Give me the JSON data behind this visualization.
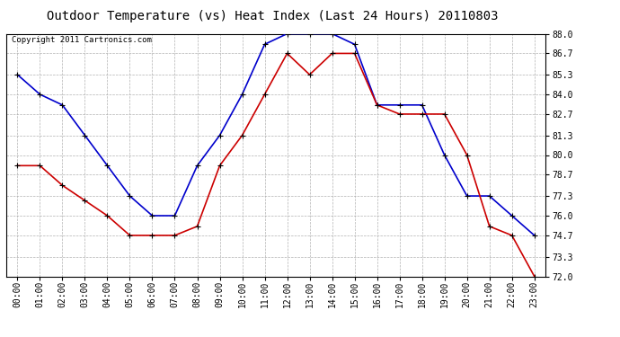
{
  "title": "Outdoor Temperature (vs) Heat Index (Last 24 Hours) 20110803",
  "copyright_text": "Copyright 2011 Cartronics.com",
  "hours": [
    "00:00",
    "01:00",
    "02:00",
    "03:00",
    "04:00",
    "05:00",
    "06:00",
    "07:00",
    "08:00",
    "09:00",
    "10:00",
    "11:00",
    "12:00",
    "13:00",
    "14:00",
    "15:00",
    "16:00",
    "17:00",
    "18:00",
    "19:00",
    "20:00",
    "21:00",
    "22:00",
    "23:00"
  ],
  "blue_data": [
    85.3,
    84.0,
    83.3,
    81.3,
    79.3,
    77.3,
    76.0,
    76.0,
    79.3,
    81.3,
    84.0,
    87.3,
    88.0,
    88.0,
    88.0,
    87.3,
    83.3,
    83.3,
    83.3,
    80.0,
    77.3,
    77.3,
    76.0,
    74.7
  ],
  "red_data": [
    79.3,
    79.3,
    78.0,
    77.0,
    76.0,
    74.7,
    74.7,
    74.7,
    75.3,
    79.3,
    81.3,
    84.0,
    86.7,
    85.3,
    86.7,
    86.7,
    83.3,
    82.7,
    82.7,
    82.7,
    80.0,
    75.3,
    74.7,
    72.0
  ],
  "ylim_min": 72.0,
  "ylim_max": 88.0,
  "yticks": [
    72.0,
    73.3,
    74.7,
    76.0,
    77.3,
    78.7,
    80.0,
    81.3,
    82.7,
    84.0,
    85.3,
    86.7,
    88.0
  ],
  "blue_color": "#0000CC",
  "red_color": "#CC0000",
  "bg_color": "#FFFFFF",
  "plot_bg_color": "#FFFFFF",
  "grid_color": "#AAAAAA",
  "title_fontsize": 10,
  "axis_label_fontsize": 7,
  "copyright_fontsize": 6.5
}
